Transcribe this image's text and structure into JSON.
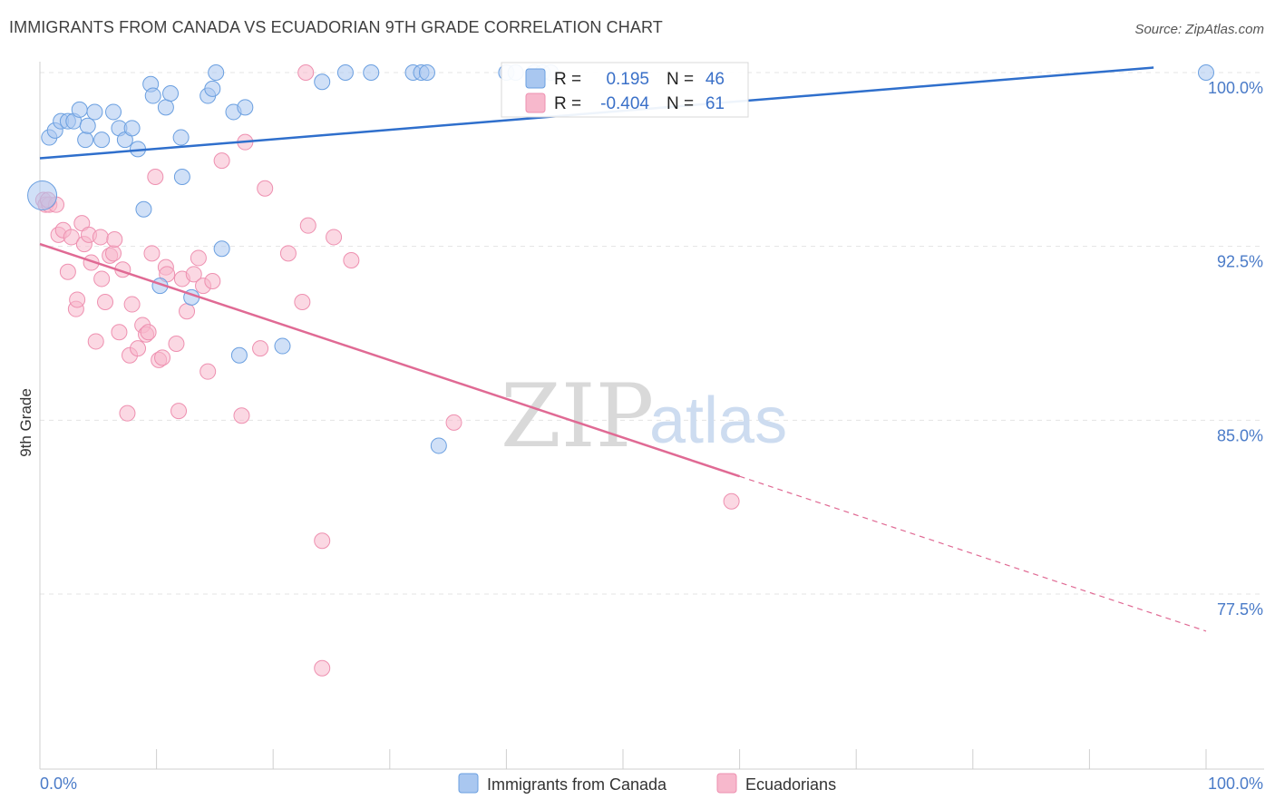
{
  "header": {
    "title": "IMMIGRANTS FROM CANADA VS ECUADORIAN 9TH GRADE CORRELATION CHART",
    "source": "Source: ZipAtlas.com"
  },
  "watermark": {
    "part1": "ZIP",
    "part2": "atlas"
  },
  "legend_box": {
    "rows": [
      {
        "r_label": "R =",
        "r_value": "0.195",
        "n_label": "N =",
        "n_value": "46",
        "color": "#a9c7f0"
      },
      {
        "r_label": "R =",
        "r_value": "-0.404",
        "n_label": "N =",
        "n_value": "61",
        "color": "#f7b8cc"
      }
    ]
  },
  "bottom_legend": {
    "items": [
      {
        "label": "Immigrants from Canada",
        "color": "#a9c7f0"
      },
      {
        "label": "Ecuadorians",
        "color": "#f7b8cc"
      }
    ]
  },
  "chart_data": {
    "type": "scatter",
    "title": "IMMIGRANTS FROM CANADA VS ECUADORIAN 9TH GRADE CORRELATION CHART",
    "ylabel": "9th Grade",
    "xlabel": "",
    "xlim": [
      0,
      100
    ],
    "ylim": [
      70.5,
      101.1
    ],
    "x_tick_labels": [
      "0.0%",
      "100.0%"
    ],
    "y_ticks": [
      77.5,
      85.0,
      92.5,
      100.0
    ],
    "y_tick_labels": [
      "77.5%",
      "85.0%",
      "92.5%",
      "100.0%"
    ],
    "grid": true,
    "legend_position": "top-center",
    "colors": {
      "canada": "#6a9fe0",
      "canada_fill": "#a9c7f0",
      "canada_line": "#2f6fcc",
      "ecuador": "#ee90b0",
      "ecuador_fill": "#f7b8cc",
      "ecuador_line": "#e06a94"
    },
    "series": [
      {
        "name": "Immigrants from Canada",
        "points": [
          [
            0.2,
            94.7
          ],
          [
            0.8,
            97.2
          ],
          [
            1.3,
            97.5
          ],
          [
            1.8,
            97.9
          ],
          [
            2.4,
            97.9
          ],
          [
            2.9,
            97.9
          ],
          [
            3.4,
            98.4
          ],
          [
            3.9,
            97.1
          ],
          [
            4.1,
            97.7
          ],
          [
            4.7,
            98.3
          ],
          [
            5.3,
            97.1
          ],
          [
            6.3,
            98.3
          ],
          [
            6.8,
            97.6
          ],
          [
            7.3,
            97.1
          ],
          [
            7.9,
            97.6
          ],
          [
            8.4,
            96.7
          ],
          [
            8.9,
            94.1
          ],
          [
            9.5,
            99.5
          ],
          [
            9.7,
            99.0
          ],
          [
            10.3,
            90.8
          ],
          [
            10.8,
            98.5
          ],
          [
            11.2,
            99.1
          ],
          [
            12.1,
            97.2
          ],
          [
            12.2,
            95.5
          ],
          [
            13.0,
            90.3
          ],
          [
            14.4,
            99.0
          ],
          [
            14.8,
            99.3
          ],
          [
            15.1,
            100.0
          ],
          [
            15.6,
            92.4
          ],
          [
            16.6,
            98.3
          ],
          [
            17.1,
            87.8
          ],
          [
            17.6,
            98.5
          ],
          [
            20.8,
            88.2
          ],
          [
            24.2,
            99.6
          ],
          [
            26.2,
            100.0
          ],
          [
            28.4,
            100.0
          ],
          [
            32.0,
            100.0
          ],
          [
            32.7,
            100.0
          ],
          [
            33.2,
            100.0
          ],
          [
            34.2,
            83.9
          ],
          [
            40.0,
            100.0
          ],
          [
            40.8,
            100.0
          ],
          [
            42.4,
            100.0
          ],
          [
            43.1,
            100.0
          ],
          [
            43.8,
            100.0
          ],
          [
            100.0,
            100.0
          ]
        ]
      },
      {
        "name": "Ecuadorians",
        "points": [
          [
            0.3,
            94.5
          ],
          [
            0.5,
            94.3
          ],
          [
            0.8,
            94.3
          ],
          [
            1.4,
            94.3
          ],
          [
            1.6,
            93.0
          ],
          [
            2.0,
            93.2
          ],
          [
            2.4,
            91.4
          ],
          [
            2.7,
            92.9
          ],
          [
            3.1,
            89.8
          ],
          [
            3.2,
            90.2
          ],
          [
            3.6,
            93.5
          ],
          [
            3.8,
            92.6
          ],
          [
            4.2,
            93.0
          ],
          [
            4.4,
            91.8
          ],
          [
            4.8,
            88.4
          ],
          [
            5.2,
            92.9
          ],
          [
            5.3,
            91.1
          ],
          [
            5.6,
            90.1
          ],
          [
            6.0,
            92.1
          ],
          [
            6.3,
            92.2
          ],
          [
            6.4,
            92.8
          ],
          [
            6.8,
            88.8
          ],
          [
            7.1,
            91.5
          ],
          [
            7.5,
            85.3
          ],
          [
            7.7,
            87.8
          ],
          [
            7.9,
            90.0
          ],
          [
            8.4,
            88.1
          ],
          [
            8.8,
            89.1
          ],
          [
            9.1,
            88.7
          ],
          [
            9.3,
            88.8
          ],
          [
            9.6,
            92.2
          ],
          [
            9.9,
            95.5
          ],
          [
            10.2,
            87.6
          ],
          [
            10.5,
            87.7
          ],
          [
            10.8,
            91.6
          ],
          [
            10.9,
            91.3
          ],
          [
            11.7,
            88.3
          ],
          [
            11.9,
            85.4
          ],
          [
            12.2,
            91.1
          ],
          [
            12.6,
            89.7
          ],
          [
            13.2,
            91.3
          ],
          [
            13.6,
            92.0
          ],
          [
            14.0,
            90.8
          ],
          [
            14.4,
            87.1
          ],
          [
            14.8,
            91.0
          ],
          [
            15.6,
            96.2
          ],
          [
            17.3,
            85.2
          ],
          [
            17.6,
            97.0
          ],
          [
            18.9,
            88.1
          ],
          [
            19.3,
            95.0
          ],
          [
            21.3,
            92.2
          ],
          [
            22.5,
            90.1
          ],
          [
            22.8,
            100.0
          ],
          [
            23.0,
            93.4
          ],
          [
            24.2,
            79.8
          ],
          [
            24.2,
            74.3
          ],
          [
            25.2,
            92.9
          ],
          [
            26.7,
            91.9
          ],
          [
            35.5,
            84.9
          ],
          [
            59.3,
            81.5
          ],
          [
            0.7,
            94.5
          ]
        ]
      }
    ],
    "trend_lines": [
      {
        "series": "Immigrants from Canada",
        "x": [
          0,
          100
        ],
        "y": [
          96.3,
          100.4
        ],
        "dashed_from": null
      },
      {
        "series": "Ecuadorians",
        "x": [
          0,
          100
        ],
        "y": [
          92.6,
          75.9
        ],
        "dashed_from": 60
      }
    ]
  }
}
